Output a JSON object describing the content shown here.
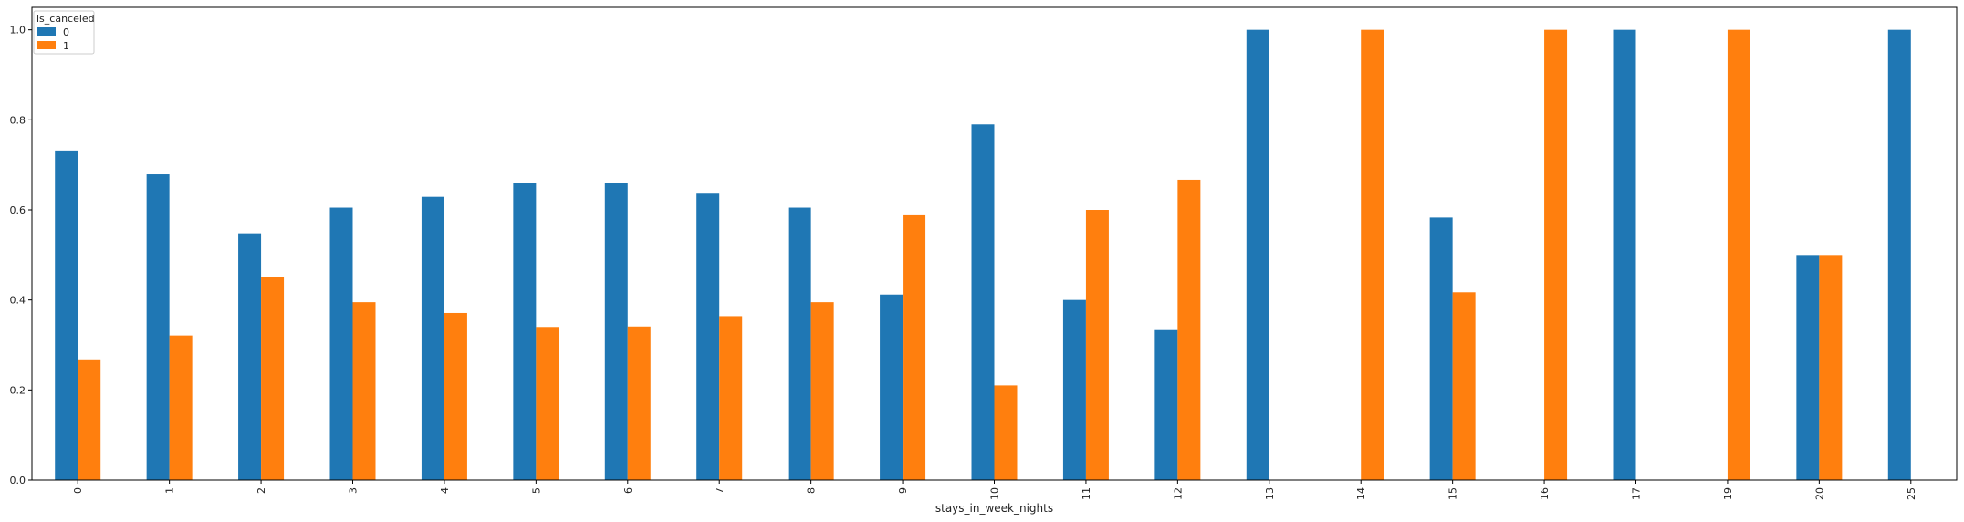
{
  "chart_data": {
    "type": "bar",
    "title": "",
    "xlabel": "stays_in_week_nights",
    "ylabel": "",
    "categories": [
      "0",
      "1",
      "2",
      "3",
      "4",
      "5",
      "6",
      "7",
      "8",
      "9",
      "10",
      "11",
      "12",
      "13",
      "14",
      "15",
      "16",
      "17",
      "19",
      "20",
      "25"
    ],
    "yticks": [
      "0.0",
      "0.2",
      "0.4",
      "0.6",
      "0.8",
      "1.0"
    ],
    "ylim": [
      0,
      1.05
    ],
    "grid": false,
    "legend": {
      "title": "is_canceled",
      "placement": "top-left"
    },
    "series": [
      {
        "name": "0",
        "color": "#1f77b4",
        "values": [
          0.732,
          0.679,
          0.548,
          0.605,
          0.629,
          0.66,
          0.659,
          0.636,
          0.605,
          0.412,
          0.79,
          0.4,
          0.333,
          1.0,
          0.0,
          0.583,
          0.0,
          1.0,
          0.0,
          0.5,
          1.0
        ]
      },
      {
        "name": "1",
        "color": "#ff7f0e",
        "values": [
          0.268,
          0.321,
          0.452,
          0.395,
          0.371,
          0.34,
          0.341,
          0.364,
          0.395,
          0.588,
          0.21,
          0.6,
          0.667,
          0.0,
          1.0,
          0.417,
          1.0,
          0.0,
          1.0,
          0.5,
          0.0
        ]
      }
    ]
  }
}
